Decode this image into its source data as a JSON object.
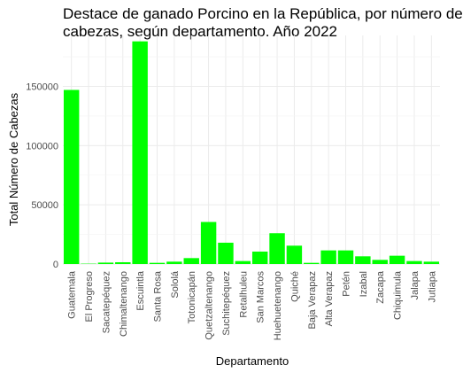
{
  "chart_data": {
    "type": "bar",
    "title": "Destace de ganado Porcino en la República, por número de\ncabezas, según departamento. Año 2022",
    "xlabel": "Departamento",
    "ylabel": "Total Número de Cabezas",
    "ylim": [
      0,
      200000
    ],
    "yticks": [
      0,
      50000,
      100000,
      150000
    ],
    "grid": true,
    "bar_color": "#00ff00",
    "categories": [
      "Guatemala",
      "El Progreso",
      "Sacatepéquez",
      "Chimaltenango",
      "Escuintla",
      "Santa Rosa",
      "Sololá",
      "Totonicapán",
      "Quetzaltenango",
      "Suchitepéquez",
      "Retalhuleu",
      "San Marcos",
      "Huehuetenango",
      "Quiché",
      "Baja Verapaz",
      "Alta Verapaz",
      "Petén",
      "Izabal",
      "Zacapa",
      "Chiquimula",
      "Jalapa",
      "Jutiapa"
    ],
    "values": [
      147000,
      300,
      1200,
      1500,
      188000,
      1000,
      2000,
      5000,
      35500,
      18000,
      2500,
      10500,
      26000,
      15500,
      1000,
      11500,
      11500,
      6500,
      3500,
      7000,
      2500,
      2000
    ]
  }
}
